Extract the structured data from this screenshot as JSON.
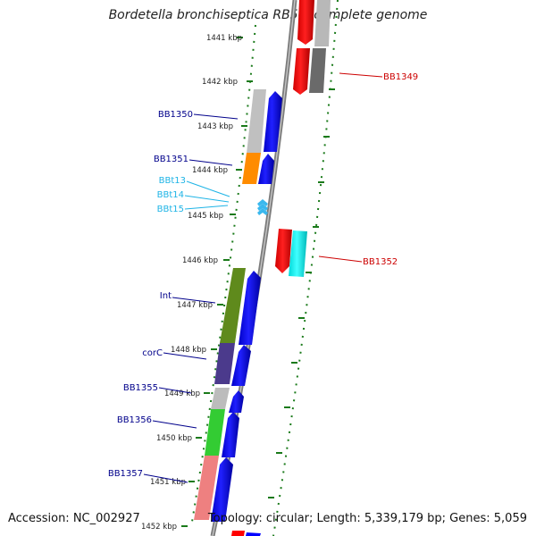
{
  "title": "Bordetella bronchiseptica RB50, complete genome",
  "footer": {
    "accession": "Accession: NC_002927",
    "topology": "Topology: circular; Length: 5,339,179 bp; Genes: 5,059"
  },
  "ticks": [
    {
      "label": "1441 kbp"
    },
    {
      "label": "1442 kbp"
    },
    {
      "label": "1443 kbp"
    },
    {
      "label": "1444 kbp"
    },
    {
      "label": "1445 kbp"
    },
    {
      "label": "1446 kbp"
    },
    {
      "label": "1447 kbp"
    },
    {
      "label": "1448 kbp"
    },
    {
      "label": "1449 kbp"
    },
    {
      "label": "1450 kbp"
    },
    {
      "label": "1451 kbp"
    },
    {
      "label": "1452 kbp"
    }
  ],
  "gene_labels_left": [
    {
      "label": "BB1350",
      "color": "#00008b"
    },
    {
      "label": "BB1351",
      "color": "#00008b"
    },
    {
      "label": "BBt13",
      "color": "#1eb4e6"
    },
    {
      "label": "BBt14",
      "color": "#1eb4e6"
    },
    {
      "label": "BBt15",
      "color": "#1eb4e6"
    },
    {
      "label": "Int",
      "color": "#00008b"
    },
    {
      "label": "corC",
      "color": "#00008b"
    },
    {
      "label": "BB1355",
      "color": "#00008b"
    },
    {
      "label": "BB1356",
      "color": "#00008b"
    },
    {
      "label": "BB1357",
      "color": "#00008b"
    }
  ],
  "gene_labels_right": [
    {
      "label": "BB1349",
      "color": "#cc0000"
    },
    {
      "label": "BB1352",
      "color": "#cc0000"
    }
  ],
  "colors": {
    "backbone": "#8a8a8a",
    "tick": "#1a7a1a",
    "forward_cds": "#0000ff",
    "reverse_cds": "#ff0000",
    "trna": "#3ab8ee"
  }
}
